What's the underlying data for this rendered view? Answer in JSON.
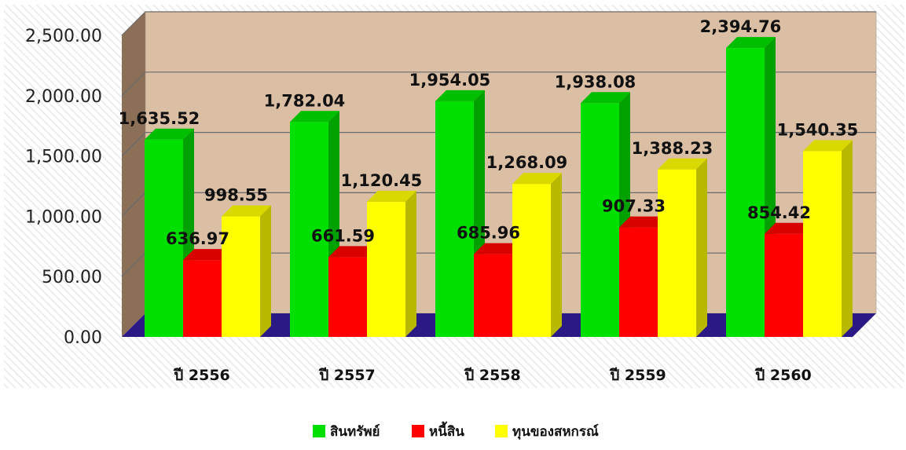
{
  "chart_data": {
    "type": "bar",
    "categories": [
      "ปี 2556",
      "ปี 2557",
      "ปี 2558",
      "ปี 2559",
      "ปี 2560"
    ],
    "series": [
      {
        "name": "สินทรัพย์",
        "values": [
          1635.52,
          1782.04,
          1954.05,
          1938.08,
          2394.76
        ],
        "color": "#00e000"
      },
      {
        "name": "หนี้สิน",
        "values": [
          636.97,
          661.59,
          685.96,
          907.33,
          854.42
        ],
        "color": "#ff0000"
      },
      {
        "name": "ทุนของสหกรณ์",
        "values": [
          998.55,
          1120.45,
          1268.09,
          1388.23,
          1540.35
        ],
        "color": "#ffff00"
      }
    ],
    "data_labels": [
      [
        "1,635.52",
        "1,782.04",
        "1,954.05",
        "1,938.08",
        "2,394.76"
      ],
      [
        "636.97",
        "661.59",
        "685.96",
        "907.33",
        "854.42"
      ],
      [
        "998.55",
        "1,120.45",
        "1,268.09",
        "1,388.23",
        "1,540.35"
      ]
    ],
    "y_ticks": [
      "0.00",
      "500.00",
      "1,000.00",
      "1,500.00",
      "2,000.00",
      "2,500.00"
    ],
    "ylim": [
      0,
      2500
    ],
    "title": "",
    "xlabel": "",
    "ylabel": "",
    "grid": true,
    "legend_position": "bottom",
    "style": "3d-clustered-column",
    "colors": {
      "wall": "#dbbfa5",
      "side_wall": "#8c6f57",
      "floor": "#2b1a86",
      "gridline": "#6a6a6a"
    }
  }
}
